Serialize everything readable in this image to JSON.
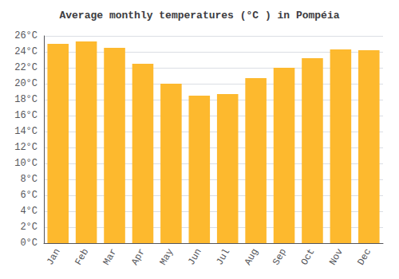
{
  "chart_data": {
    "type": "bar",
    "title": "Average monthly temperatures (°C ) in Pompéia",
    "categories": [
      "Jan",
      "Feb",
      "Mar",
      "Apr",
      "May",
      "Jun",
      "Jul",
      "Aug",
      "Sep",
      "Oct",
      "Nov",
      "Dec"
    ],
    "values": [
      25.0,
      25.3,
      24.5,
      22.5,
      20.0,
      18.5,
      18.7,
      20.7,
      22.0,
      23.2,
      24.3,
      24.2
    ],
    "color": "#FDB92E",
    "ylim": [
      0,
      26
    ],
    "yticks": [
      {
        "value": 0,
        "label": "0°C"
      },
      {
        "value": 2,
        "label": "2°C"
      },
      {
        "value": 4,
        "label": "4°C"
      },
      {
        "value": 6,
        "label": "6°C"
      },
      {
        "value": 8,
        "label": "8°C"
      },
      {
        "value": 10,
        "label": "10°C"
      },
      {
        "value": 12,
        "label": "12°C"
      },
      {
        "value": 14,
        "label": "14°C"
      },
      {
        "value": 16,
        "label": "16°C"
      },
      {
        "value": 18,
        "label": "18°C"
      },
      {
        "value": 20,
        "label": "20°C"
      },
      {
        "value": 22,
        "label": "22°C"
      },
      {
        "value": 24,
        "label": "24°C"
      },
      {
        "value": 26,
        "label": "26°C"
      }
    ],
    "grid": true
  }
}
